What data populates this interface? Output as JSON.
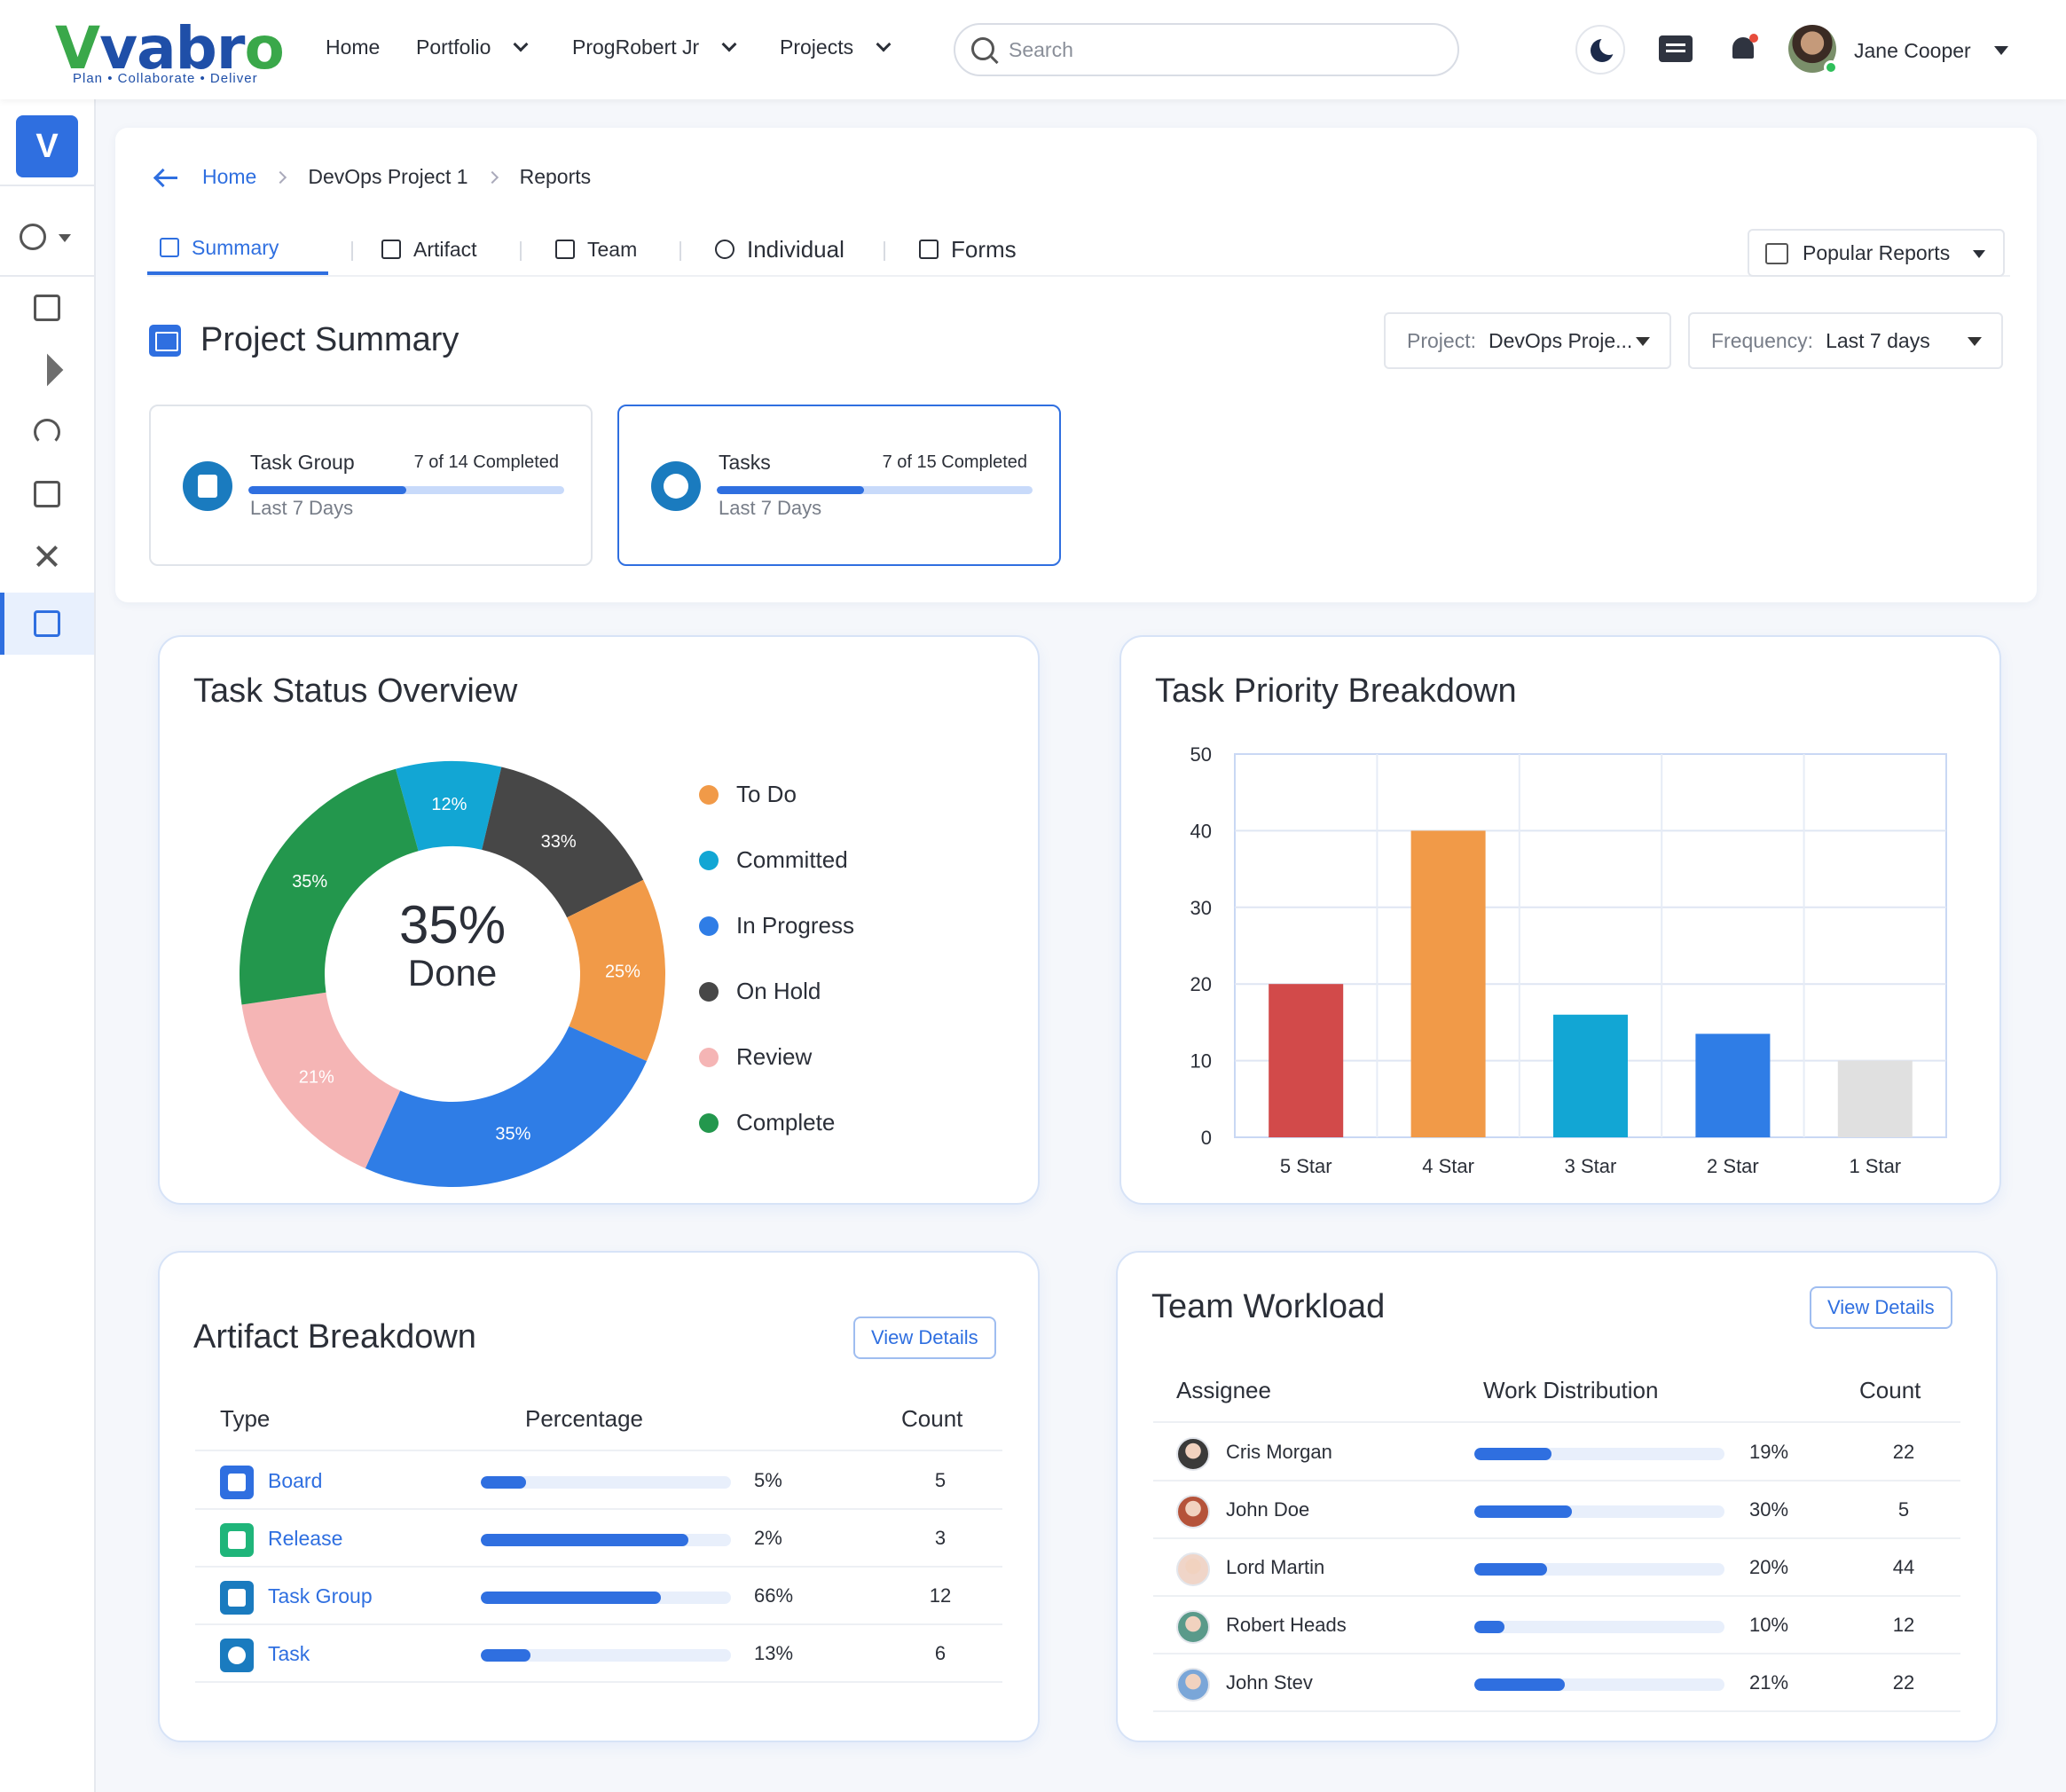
{
  "brand": {
    "name_main": "vabr",
    "name_first": "V",
    "name_end": "o",
    "tagline": "Plan • Collaborate • Deliver",
    "tile_letter": "V"
  },
  "nav": {
    "home": "Home",
    "portfolio": "Portfolio",
    "user_menu": "ProgRobert Jr",
    "projects": "Projects"
  },
  "search": {
    "placeholder": "Search"
  },
  "user": {
    "name": "Jane Cooper"
  },
  "breadcrumb": {
    "home": "Home",
    "project": "DevOps Project 1",
    "current": "Reports"
  },
  "tabs": {
    "summary": "Summary",
    "artifact": "Artifact",
    "team": "Team",
    "individual": "Individual",
    "forms": "Forms"
  },
  "popular_reports": "Popular Reports",
  "page_title": "Project Summary",
  "filters": {
    "project_label": "Project:",
    "project_value": "DevOps Proje...",
    "frequency_label": "Frequency:",
    "frequency_value": "Last 7 days"
  },
  "stats": [
    {
      "label": "Task Group",
      "completed": "7 of 14 Completed",
      "period": "Last 7 Days",
      "progress": 0.5
    },
    {
      "label": "Tasks",
      "completed": "7 of 15 Completed",
      "period": "Last 7 Days",
      "progress": 0.467
    }
  ],
  "status_card": {
    "title": "Task Status Overview",
    "center_value": "35%",
    "center_label": "Done",
    "legend": [
      {
        "name": "To Do",
        "color": "#f19a48"
      },
      {
        "name": "Committed",
        "color": "#12a6d4"
      },
      {
        "name": "In Progress",
        "color": "#2f7de6"
      },
      {
        "name": "On Hold",
        "color": "#474747"
      },
      {
        "name": "Review",
        "color": "#f5b5b5"
      },
      {
        "name": "Complete",
        "color": "#23974d"
      }
    ]
  },
  "priority_card": {
    "title": "Task Priority Breakdown"
  },
  "chart_data": [
    {
      "type": "pie",
      "title": "Task Status Overview",
      "donut": true,
      "slices": [
        {
          "label": "12%",
          "name": "Committed",
          "value": 8,
          "color": "#12a6d4"
        },
        {
          "label": "33%",
          "name": "On Hold",
          "value": 14,
          "color": "#474747"
        },
        {
          "label": "25%",
          "name": "To Do",
          "value": 14,
          "color": "#f19a48"
        },
        {
          "label": "35%",
          "name": "In Progress",
          "value": 25,
          "color": "#2f7de6"
        },
        {
          "label": "21%",
          "name": "Review",
          "value": 16,
          "color": "#f5b5b5"
        },
        {
          "label": "35%",
          "name": "Complete",
          "value": 23,
          "color": "#23974d"
        }
      ]
    },
    {
      "type": "bar",
      "title": "Task Priority Breakdown",
      "categories": [
        "5 Star",
        "4 Star",
        "3 Star",
        "2 Star",
        "1 Star"
      ],
      "values": [
        20,
        40,
        16,
        13.5,
        10
      ],
      "colors": [
        "#d24a4a",
        "#f19a48",
        "#12a6d4",
        "#2f7de6",
        "#e0e0e0"
      ],
      "y_ticks": [
        "50",
        "40",
        "30",
        "20",
        "10",
        "0"
      ],
      "ylim": [
        0,
        50
      ],
      "grid": true
    }
  ],
  "artifact": {
    "title": "Artifact Breakdown",
    "view": "View Details",
    "headers": {
      "type": "Type",
      "percentage": "Percentage",
      "count": "Count"
    },
    "rows": [
      {
        "type": "Board",
        "pct": "5%",
        "fill": 0.18,
        "count": "5",
        "color": "#2f6fe0"
      },
      {
        "type": "Release",
        "pct": "2%",
        "fill": 0.83,
        "count": "3",
        "color": "#1fb57a"
      },
      {
        "type": "Task Group",
        "pct": "66%",
        "fill": 0.72,
        "count": "12",
        "color": "#1a7bbf"
      },
      {
        "type": "Task",
        "pct": "13%",
        "fill": 0.2,
        "count": "6",
        "color": "#1a7bbf"
      }
    ]
  },
  "workload": {
    "title": "Team Workload",
    "view": "View Details",
    "headers": {
      "assignee": "Assignee",
      "distribution": "Work Distribution",
      "count": "Count"
    },
    "rows": [
      {
        "name": "Cris Morgan",
        "pct": "19%",
        "fill": 0.31,
        "count": "22",
        "color": "#3a3a3a"
      },
      {
        "name": "John Doe",
        "pct": "30%",
        "fill": 0.39,
        "count": "5",
        "color": "#b5533a"
      },
      {
        "name": "Lord Martin",
        "pct": "20%",
        "fill": 0.29,
        "count": "44",
        "color": "#f0d5c8"
      },
      {
        "name": "Robert Heads",
        "pct": "10%",
        "fill": 0.12,
        "count": "12",
        "color": "#5a9a8a"
      },
      {
        "name": "John Stev",
        "pct": "21%",
        "fill": 0.36,
        "count": "22",
        "color": "#7aa6d8"
      }
    ]
  }
}
